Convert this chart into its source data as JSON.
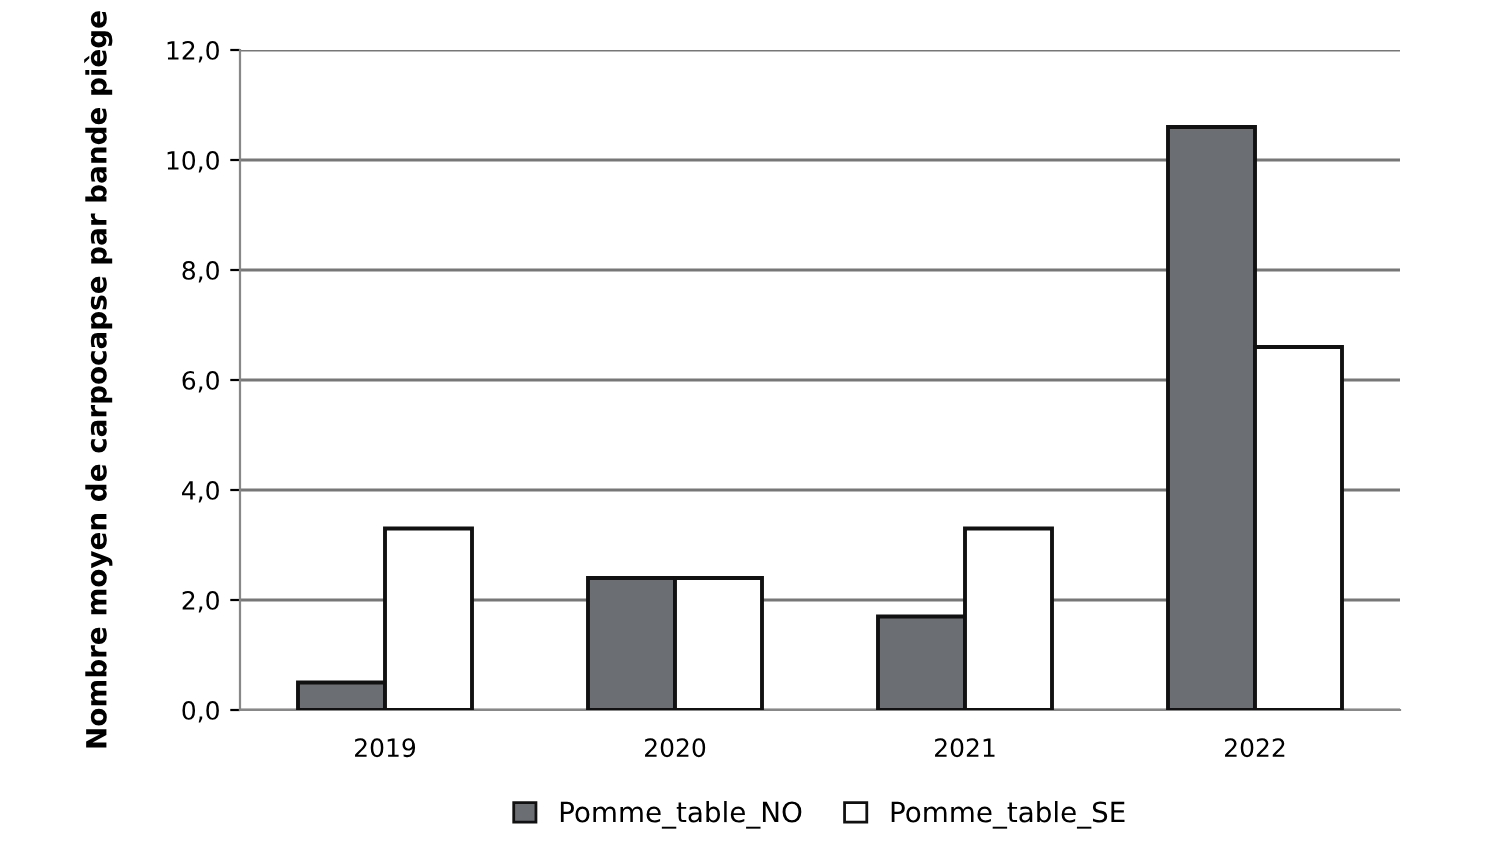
{
  "chart_data": {
    "type": "bar",
    "ylabel": "Nombre moyen de carpocapse par bande piège",
    "categories": [
      "2019",
      "2020",
      "2021",
      "2022"
    ],
    "series": [
      {
        "name": "Pomme_table_NO",
        "color": "#6b6e72",
        "values": [
          0.5,
          2.4,
          1.7,
          10.6
        ]
      },
      {
        "name": "Pomme_table_SE",
        "color": "#ffffff",
        "values": [
          3.3,
          2.4,
          3.3,
          6.6
        ]
      }
    ],
    "ylim": [
      0,
      12
    ],
    "yticks": [
      {
        "value": 0,
        "label": "0,0"
      },
      {
        "value": 2,
        "label": "2,0"
      },
      {
        "value": 4,
        "label": "4,0"
      },
      {
        "value": 6,
        "label": "6,0"
      },
      {
        "value": 8,
        "label": "8,0"
      },
      {
        "value": 10,
        "label": "10,0"
      },
      {
        "value": 12,
        "label": "12,0"
      }
    ],
    "grid": "y",
    "legend": "bottom"
  }
}
